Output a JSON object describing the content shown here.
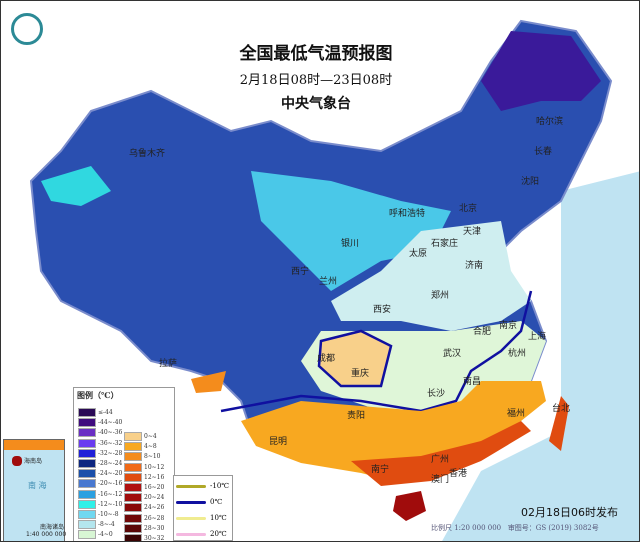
{
  "header": {
    "title": "全国最低气温预报图",
    "period": "2月18日08时—23日08时",
    "issuer": "中央气象台"
  },
  "issue_time": "02月18日06时发布",
  "scale": "比例尺 1:20 000 000",
  "map_number": "审图号：GS (2019) 3082号",
  "inset": {
    "sea": "南 海",
    "islands": "南海诸岛",
    "scale": "1:40 000 000",
    "hainan": "海南岛"
  },
  "legend": {
    "title": "图例（℃）",
    "left": [
      {
        "label": "≤-44",
        "color": "#2a0a55"
      },
      {
        "label": "-44~-40",
        "color": "#3f0b7e"
      },
      {
        "label": "-40~-36",
        "color": "#6a2fc4"
      },
      {
        "label": "-36~-32",
        "color": "#6a3cf0"
      },
      {
        "label": "-32~-28",
        "color": "#2020d8"
      },
      {
        "label": "-28~-24",
        "color": "#0d2680"
      },
      {
        "label": "-24~-20",
        "color": "#1b4faa"
      },
      {
        "label": "-20~-16",
        "color": "#4878d0"
      },
      {
        "label": "-16~-12",
        "color": "#2aa0e0"
      },
      {
        "label": "-12~-10",
        "color": "#2ff0e8"
      },
      {
        "label": "-10~-8",
        "color": "#70d8f0"
      },
      {
        "label": "-8~-4",
        "color": "#b4e6ee"
      },
      {
        "label": "-4~0",
        "color": "#d8f6d4"
      }
    ],
    "right": [
      {
        "label": "0~4",
        "color": "#f8d08a"
      },
      {
        "label": "4~8",
        "color": "#f8a820"
      },
      {
        "label": "8~10",
        "color": "#f48c1c"
      },
      {
        "label": "10~12",
        "color": "#f06a18"
      },
      {
        "label": "12~16",
        "color": "#e04c10"
      },
      {
        "label": "16~20",
        "color": "#b01010"
      },
      {
        "label": "20~24",
        "color": "#a00c0c"
      },
      {
        "label": "24~26",
        "color": "#880808"
      },
      {
        "label": "26~28",
        "color": "#700808"
      },
      {
        "label": "28~30",
        "color": "#5a0606"
      },
      {
        "label": "30~32",
        "color": "#3a0404"
      }
    ],
    "isolines": [
      {
        "label": "-10℃",
        "color": "#b0a828"
      },
      {
        "label": "0℃",
        "color": "#1010a0"
      },
      {
        "label": "10℃",
        "color": "#f0ec90"
      },
      {
        "label": "20℃",
        "color": "#f4b8e0"
      }
    ]
  },
  "cities": [
    {
      "name": "哈尔滨"
    },
    {
      "name": "长春"
    },
    {
      "name": "沈阳"
    },
    {
      "name": "北京"
    },
    {
      "name": "天津"
    },
    {
      "name": "呼和浩特"
    },
    {
      "name": "石家庄"
    },
    {
      "name": "太原"
    },
    {
      "name": "济南"
    },
    {
      "name": "银川"
    },
    {
      "name": "西宁"
    },
    {
      "name": "兰州"
    },
    {
      "name": "郑州"
    },
    {
      "name": "西安"
    },
    {
      "name": "合肥"
    },
    {
      "name": "南京"
    },
    {
      "name": "上海"
    },
    {
      "name": "杭州"
    },
    {
      "name": "武汉"
    },
    {
      "name": "成都"
    },
    {
      "name": "重庆"
    },
    {
      "name": "长沙"
    },
    {
      "name": "南昌"
    },
    {
      "name": "贵阳"
    },
    {
      "name": "拉萨"
    },
    {
      "name": "昆明"
    },
    {
      "name": "福州"
    },
    {
      "name": "台北"
    },
    {
      "name": "南宁"
    },
    {
      "name": "广州"
    },
    {
      "name": "香港"
    },
    {
      "name": "澳门"
    },
    {
      "name": "乌鲁木齐"
    }
  ]
}
